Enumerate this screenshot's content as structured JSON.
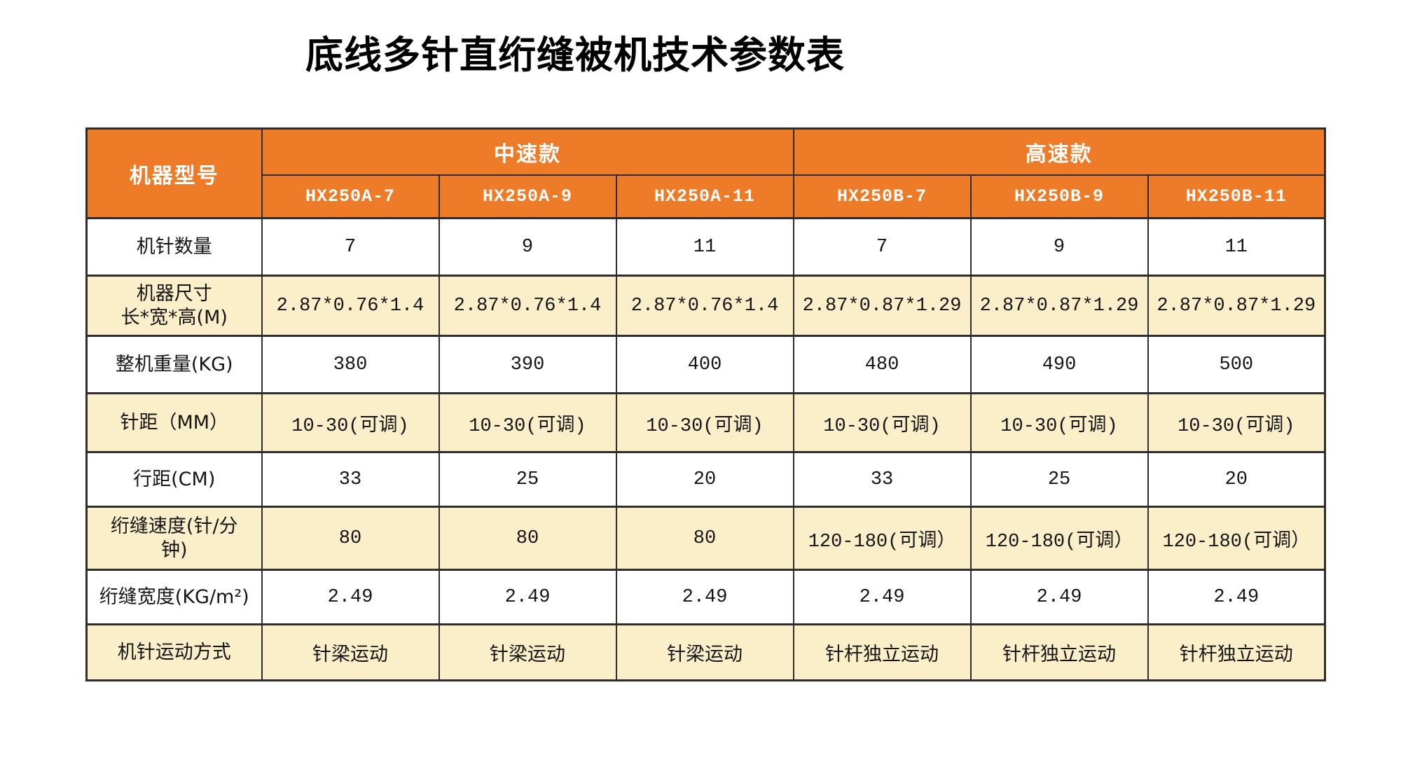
{
  "page": {
    "title": "底线多针直绗缝被机技术参数表"
  },
  "colors": {
    "header_bg": "#EE7B28",
    "stripe_bg": "#FBEFC9",
    "row_bg": "#FFFFFF",
    "border": "#2D2D2D",
    "header_text": "#FFFFFF",
    "text": "#141414"
  },
  "table": {
    "corner_label": "机器型号",
    "groups": [
      {
        "label": "中速款",
        "models": [
          "HX250A-7",
          "HX250A-9",
          "HX250A-11"
        ]
      },
      {
        "label": "高速款",
        "models": [
          "HX250B-7",
          "HX250B-9",
          "HX250B-11"
        ]
      }
    ],
    "rows": [
      {
        "label_lines": [
          "机针数量"
        ],
        "values": [
          "7",
          "9",
          "11",
          "7",
          "9",
          "11"
        ]
      },
      {
        "label_lines": [
          "机器尺寸",
          "长*宽*高(M)"
        ],
        "values": [
          "2.87*0.76*1.4",
          "2.87*0.76*1.4",
          "2.87*0.76*1.4",
          "2.87*0.87*1.29",
          "2.87*0.87*1.29",
          "2.87*0.87*1.29"
        ]
      },
      {
        "label_lines": [
          "整机重量(KG)"
        ],
        "values": [
          "380",
          "390",
          "400",
          "480",
          "490",
          "500"
        ]
      },
      {
        "label_lines": [
          "针距（MM）"
        ],
        "values": [
          "10-30(可调)",
          "10-30(可调)",
          "10-30(可调)",
          "10-30(可调)",
          "10-30(可调)",
          "10-30(可调)"
        ]
      },
      {
        "label_lines": [
          "行距(CM)"
        ],
        "values": [
          "33",
          "25",
          "20",
          "33",
          "25",
          "20"
        ]
      },
      {
        "label_lines": [
          "绗缝速度(针/分",
          "钟)"
        ],
        "values": [
          "80",
          "80",
          "80",
          "120-180(可调）",
          "120-180(可调）",
          "120-180(可调）"
        ]
      },
      {
        "label_lines": [
          "绗缝宽度(KG/m²)"
        ],
        "values": [
          "2.49",
          "2.49",
          "2.49",
          "2.49",
          "2.49",
          "2.49"
        ]
      },
      {
        "label_lines": [
          "机针运动方式"
        ],
        "values": [
          "针梁运动",
          "针梁运动",
          "针梁运动",
          "针杆独立运动",
          "针杆独立运动",
          "针杆独立运动"
        ]
      }
    ]
  }
}
